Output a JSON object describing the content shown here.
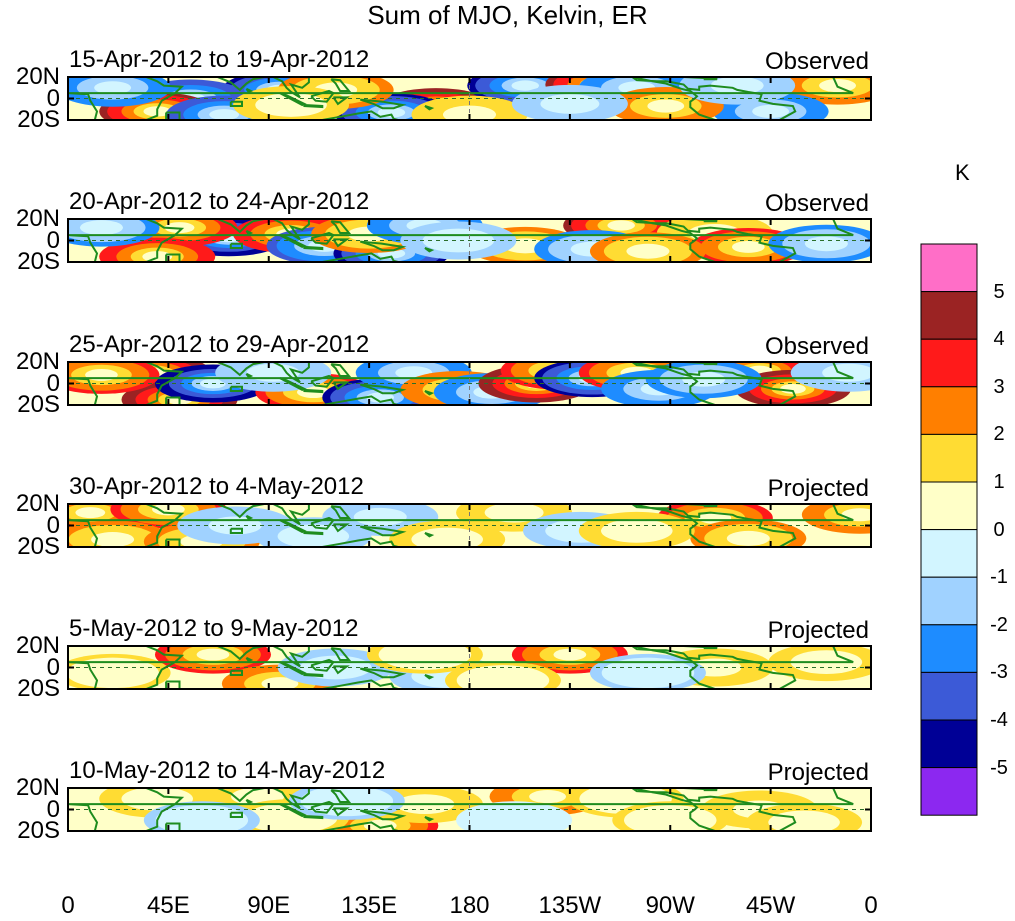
{
  "chart_data": {
    "type": "heatmap",
    "title": "Sum of MJO, Kelvin, ER",
    "y_tick_labels": [
      "20N",
      "0",
      "20S"
    ],
    "x_tick_labels": [
      "0",
      "45E",
      "90E",
      "135E",
      "180",
      "135W",
      "90W",
      "45W",
      "0"
    ],
    "x_range": [
      0,
      360
    ],
    "y_range": [
      -20,
      20
    ],
    "colorbar": {
      "unit": "K",
      "labels": [
        "5",
        "4",
        "3",
        "2",
        "1",
        "0",
        "-1",
        "-2",
        "-3",
        "-4",
        "-5"
      ],
      "colors": [
        "#ff6ec7",
        "#9b2323",
        "#ff1a1a",
        "#ff7f00",
        "#ffdc33",
        "#ffffc8",
        "#d2f5ff",
        "#a0d2ff",
        "#1e8cff",
        "#3c5ad7",
        "#000096",
        "#8c28f0"
      ]
    },
    "panels": [
      {
        "title": "15-Apr-2012 to 19-Apr-2012",
        "status": "Observed",
        "blobs": [
          {
            "lon": 95,
            "lat": 8,
            "v": -4.5
          },
          {
            "lon": 55,
            "lat": 0,
            "v": -4.0
          },
          {
            "lon": 40,
            "lat": -12,
            "v": 4.5
          },
          {
            "lon": 70,
            "lat": -15,
            "v": -4.0
          },
          {
            "lon": 165,
            "lat": -8,
            "v": 5.0
          },
          {
            "lon": 145,
            "lat": -13,
            "v": -4.5
          },
          {
            "lon": 205,
            "lat": 12,
            "v": -4.5
          },
          {
            "lon": 240,
            "lat": 13,
            "v": 4.5
          },
          {
            "lon": 255,
            "lat": 10,
            "v": -3.0
          },
          {
            "lon": 345,
            "lat": 12,
            "v": 3.0
          },
          {
            "lon": 315,
            "lat": -12,
            "v": -3.0
          },
          {
            "lon": 20,
            "lat": 10,
            "v": -3.0
          },
          {
            "lon": 120,
            "lat": 8,
            "v": 2.5
          },
          {
            "lon": 100,
            "lat": -6,
            "v": 1.5
          },
          {
            "lon": 268,
            "lat": -7,
            "v": 3.0
          },
          {
            "lon": 180,
            "lat": -15,
            "v": 2.0
          },
          {
            "lon": 300,
            "lat": 12,
            "v": -2.0
          },
          {
            "lon": 225,
            "lat": -5,
            "v": -1.8
          }
        ]
      },
      {
        "title": "20-Apr-2012 to 24-Apr-2012",
        "status": "Observed",
        "blobs": [
          {
            "lon": 72,
            "lat": 3,
            "v": -5.0
          },
          {
            "lon": 50,
            "lat": 12,
            "v": 4.0
          },
          {
            "lon": 100,
            "lat": 6,
            "v": 4.0
          },
          {
            "lon": 115,
            "lat": -5,
            "v": -3.5
          },
          {
            "lon": 145,
            "lat": -12,
            "v": -4.5
          },
          {
            "lon": 40,
            "lat": -15,
            "v": 4.0
          },
          {
            "lon": 135,
            "lat": 6,
            "v": 2.5
          },
          {
            "lon": 160,
            "lat": 14,
            "v": -3.0
          },
          {
            "lon": 248,
            "lat": 14,
            "v": 4.5
          },
          {
            "lon": 205,
            "lat": -5,
            "v": 2.5
          },
          {
            "lon": 235,
            "lat": -8,
            "v": -2.5
          },
          {
            "lon": 290,
            "lat": 7,
            "v": 2.0
          },
          {
            "lon": 305,
            "lat": -6,
            "v": 3.5
          },
          {
            "lon": 340,
            "lat": -3,
            "v": -2.5
          },
          {
            "lon": 15,
            "lat": 12,
            "v": -2.5
          },
          {
            "lon": 260,
            "lat": -10,
            "v": 2.5
          },
          {
            "lon": 175,
            "lat": 0,
            "v": -1.5
          }
        ]
      },
      {
        "title": "25-Apr-2012 to 29-Apr-2012",
        "status": "Observed",
        "blobs": [
          {
            "lon": 38,
            "lat": 10,
            "v": 5.0
          },
          {
            "lon": 50,
            "lat": -15,
            "v": 5.0
          },
          {
            "lon": 65,
            "lat": 0,
            "v": -5.0
          },
          {
            "lon": 15,
            "lat": 8,
            "v": 3.5
          },
          {
            "lon": 110,
            "lat": -8,
            "v": 3.5
          },
          {
            "lon": 140,
            "lat": -13,
            "v": -4.5
          },
          {
            "lon": 155,
            "lat": 10,
            "v": -3.0
          },
          {
            "lon": 175,
            "lat": -6,
            "v": 3.0
          },
          {
            "lon": 190,
            "lat": -8,
            "v": -3.0
          },
          {
            "lon": 210,
            "lat": 0,
            "v": 5.0
          },
          {
            "lon": 220,
            "lat": 12,
            "v": 3.5
          },
          {
            "lon": 235,
            "lat": 5,
            "v": -4.5
          },
          {
            "lon": 255,
            "lat": 10,
            "v": 3.5
          },
          {
            "lon": 265,
            "lat": -5,
            "v": -3.0
          },
          {
            "lon": 310,
            "lat": 12,
            "v": 5.0
          },
          {
            "lon": 325,
            "lat": -5,
            "v": 5.0
          },
          {
            "lon": 285,
            "lat": 4,
            "v": -2.5
          },
          {
            "lon": 350,
            "lat": 10,
            "v": -2.0
          },
          {
            "lon": 92,
            "lat": 10,
            "v": -2.0
          }
        ]
      },
      {
        "title": "30-Apr-2012 to 4-May-2012",
        "status": "Projected",
        "blobs": [
          {
            "lon": 10,
            "lat": 12,
            "v": 4.0
          },
          {
            "lon": 45,
            "lat": 15,
            "v": 3.5
          },
          {
            "lon": 290,
            "lat": 7,
            "v": 3.5
          },
          {
            "lon": 355,
            "lat": 10,
            "v": 3.0
          },
          {
            "lon": 20,
            "lat": -13,
            "v": 2.5
          },
          {
            "lon": 60,
            "lat": -15,
            "v": 2.5
          },
          {
            "lon": 75,
            "lat": 0,
            "v": -2.0
          },
          {
            "lon": 140,
            "lat": 8,
            "v": -2.0
          },
          {
            "lon": 200,
            "lat": 12,
            "v": 1.8
          },
          {
            "lon": 230,
            "lat": -5,
            "v": -1.5
          },
          {
            "lon": 305,
            "lat": -12,
            "v": 2.5
          },
          {
            "lon": 110,
            "lat": -10,
            "v": -1.5
          },
          {
            "lon": 170,
            "lat": -13,
            "v": 1.5
          },
          {
            "lon": 255,
            "lat": -5,
            "v": 1.5
          }
        ]
      },
      {
        "title": "5-May-2012 to 9-May-2012",
        "status": "Projected",
        "blobs": [
          {
            "lon": 65,
            "lat": 12,
            "v": 3.5
          },
          {
            "lon": 225,
            "lat": 12,
            "v": 3.5
          },
          {
            "lon": 95,
            "lat": -15,
            "v": 3.0
          },
          {
            "lon": 120,
            "lat": 0,
            "v": -1.5
          },
          {
            "lon": 170,
            "lat": -8,
            "v": -1.5
          },
          {
            "lon": 290,
            "lat": 0,
            "v": 2.0
          },
          {
            "lon": 20,
            "lat": -5,
            "v": 1.2
          },
          {
            "lon": 340,
            "lat": 5,
            "v": 1.5
          },
          {
            "lon": 160,
            "lat": 12,
            "v": 1.2
          },
          {
            "lon": 195,
            "lat": -12,
            "v": 1.2
          },
          {
            "lon": 260,
            "lat": -5,
            "v": -1.2
          }
        ]
      },
      {
        "title": "10-May-2012 to 14-May-2012",
        "status": "Projected",
        "blobs": [
          {
            "lon": 215,
            "lat": 12,
            "v": 3.0
          },
          {
            "lon": 140,
            "lat": -15,
            "v": 3.5
          },
          {
            "lon": 85,
            "lat": 12,
            "v": 2.0
          },
          {
            "lon": 310,
            "lat": 0,
            "v": 2.0
          },
          {
            "lon": 160,
            "lat": 5,
            "v": 1.8
          },
          {
            "lon": 100,
            "lat": -8,
            "v": 1.2
          },
          {
            "lon": 40,
            "lat": 10,
            "v": 1.5
          },
          {
            "lon": 60,
            "lat": -10,
            "v": -1.2
          },
          {
            "lon": 125,
            "lat": 8,
            "v": -1.2
          },
          {
            "lon": 330,
            "lat": -12,
            "v": 1.5
          },
          {
            "lon": 250,
            "lat": 10,
            "v": 1.2
          },
          {
            "lon": 270,
            "lat": -10,
            "v": 1.2
          },
          {
            "lon": 200,
            "lat": -10,
            "v": -1.0
          }
        ]
      }
    ]
  }
}
